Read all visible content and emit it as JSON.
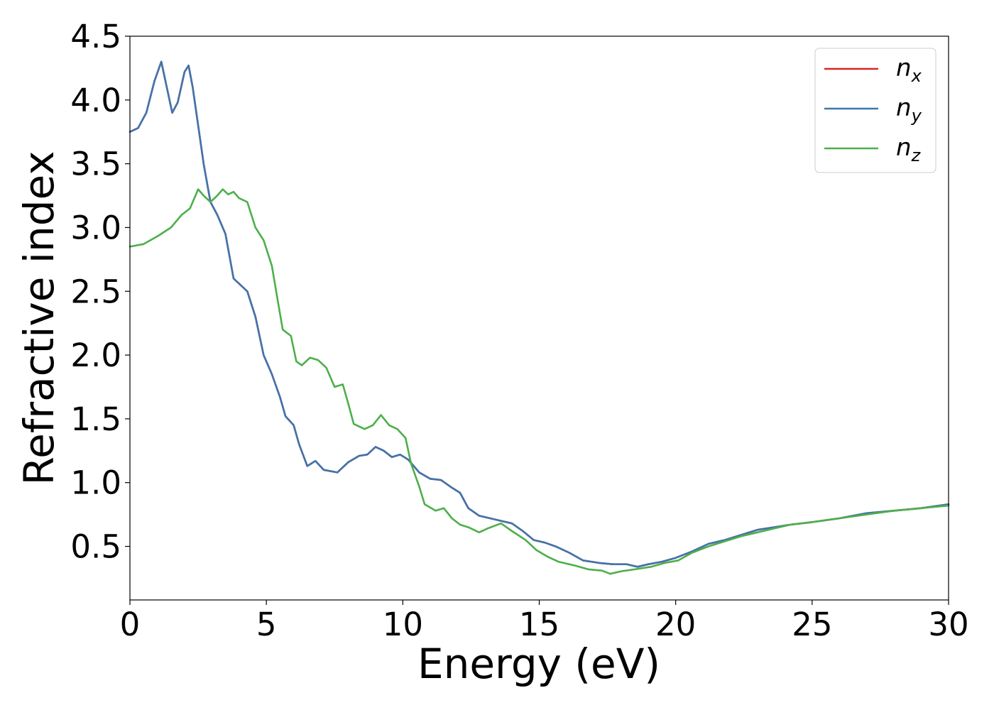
{
  "chart_data": {
    "type": "line",
    "xlabel": "Energy (eV)",
    "ylabel": "Refractive index",
    "xlim": [
      0,
      30
    ],
    "ylim": [
      0.08,
      4.5
    ],
    "xticks": [
      "0",
      "5",
      "10",
      "15",
      "20",
      "25",
      "30"
    ],
    "yticks": [
      "0.5",
      "1.0",
      "1.5",
      "2.0",
      "2.5",
      "3.0",
      "3.5",
      "4.0",
      "4.5"
    ],
    "grid": false,
    "legend_position": "top-right",
    "series": [
      {
        "name": "n_x",
        "label_main": "n",
        "label_sub": "x",
        "color": "#d62728",
        "points": [
          [
            0,
            3.75
          ],
          [
            0.3,
            3.78
          ],
          [
            0.6,
            3.9
          ],
          [
            0.9,
            4.15
          ],
          [
            1.15,
            4.3
          ],
          [
            1.35,
            4.1
          ],
          [
            1.55,
            3.9
          ],
          [
            1.75,
            3.98
          ],
          [
            2.0,
            4.22
          ],
          [
            2.15,
            4.27
          ],
          [
            2.3,
            4.1
          ],
          [
            2.5,
            3.8
          ],
          [
            2.7,
            3.5
          ],
          [
            2.95,
            3.2
          ],
          [
            3.2,
            3.1
          ],
          [
            3.5,
            2.95
          ],
          [
            3.8,
            2.6
          ],
          [
            4.05,
            2.55
          ],
          [
            4.3,
            2.5
          ],
          [
            4.6,
            2.3
          ],
          [
            4.9,
            2.0
          ],
          [
            5.2,
            1.85
          ],
          [
            5.5,
            1.67
          ],
          [
            5.7,
            1.52
          ],
          [
            6.0,
            1.45
          ],
          [
            6.2,
            1.3
          ],
          [
            6.5,
            1.13
          ],
          [
            6.8,
            1.17
          ],
          [
            7.1,
            1.1
          ],
          [
            7.6,
            1.08
          ],
          [
            8.0,
            1.16
          ],
          [
            8.4,
            1.21
          ],
          [
            8.7,
            1.22
          ],
          [
            9.0,
            1.28
          ],
          [
            9.3,
            1.25
          ],
          [
            9.6,
            1.2
          ],
          [
            9.9,
            1.22
          ],
          [
            10.2,
            1.18
          ],
          [
            10.6,
            1.08
          ],
          [
            11.0,
            1.03
          ],
          [
            11.4,
            1.02
          ],
          [
            11.8,
            0.96
          ],
          [
            12.1,
            0.92
          ],
          [
            12.4,
            0.8
          ],
          [
            12.8,
            0.74
          ],
          [
            13.2,
            0.72
          ],
          [
            13.6,
            0.7
          ],
          [
            14.0,
            0.68
          ],
          [
            14.4,
            0.62
          ],
          [
            14.8,
            0.55
          ],
          [
            15.2,
            0.53
          ],
          [
            15.6,
            0.5
          ],
          [
            16.1,
            0.45
          ],
          [
            16.6,
            0.39
          ],
          [
            17.2,
            0.37
          ],
          [
            17.7,
            0.36
          ],
          [
            18.2,
            0.36
          ],
          [
            18.6,
            0.34
          ],
          [
            19.0,
            0.36
          ],
          [
            19.5,
            0.38
          ],
          [
            20.0,
            0.41
          ],
          [
            20.6,
            0.46
          ],
          [
            21.2,
            0.52
          ],
          [
            21.8,
            0.55
          ],
          [
            22.4,
            0.59
          ],
          [
            23.0,
            0.63
          ],
          [
            23.6,
            0.65
          ],
          [
            24.2,
            0.67
          ],
          [
            25.0,
            0.69
          ],
          [
            26.0,
            0.72
          ],
          [
            27.0,
            0.76
          ],
          [
            28.0,
            0.78
          ],
          [
            29.0,
            0.8
          ],
          [
            30.0,
            0.83
          ]
        ]
      },
      {
        "name": "n_y",
        "label_main": "n",
        "label_sub": "y",
        "color": "#3f75ad",
        "points": [
          [
            0,
            3.75
          ],
          [
            0.3,
            3.78
          ],
          [
            0.6,
            3.9
          ],
          [
            0.9,
            4.15
          ],
          [
            1.15,
            4.3
          ],
          [
            1.35,
            4.1
          ],
          [
            1.55,
            3.9
          ],
          [
            1.75,
            3.98
          ],
          [
            2.0,
            4.22
          ],
          [
            2.15,
            4.27
          ],
          [
            2.3,
            4.1
          ],
          [
            2.5,
            3.8
          ],
          [
            2.7,
            3.5
          ],
          [
            2.95,
            3.2
          ],
          [
            3.2,
            3.1
          ],
          [
            3.5,
            2.95
          ],
          [
            3.8,
            2.6
          ],
          [
            4.05,
            2.55
          ],
          [
            4.3,
            2.5
          ],
          [
            4.6,
            2.3
          ],
          [
            4.9,
            2.0
          ],
          [
            5.2,
            1.85
          ],
          [
            5.5,
            1.67
          ],
          [
            5.7,
            1.52
          ],
          [
            6.0,
            1.45
          ],
          [
            6.2,
            1.3
          ],
          [
            6.5,
            1.13
          ],
          [
            6.8,
            1.17
          ],
          [
            7.1,
            1.1
          ],
          [
            7.6,
            1.08
          ],
          [
            8.0,
            1.16
          ],
          [
            8.4,
            1.21
          ],
          [
            8.7,
            1.22
          ],
          [
            9.0,
            1.28
          ],
          [
            9.3,
            1.25
          ],
          [
            9.6,
            1.2
          ],
          [
            9.9,
            1.22
          ],
          [
            10.2,
            1.18
          ],
          [
            10.6,
            1.08
          ],
          [
            11.0,
            1.03
          ],
          [
            11.4,
            1.02
          ],
          [
            11.8,
            0.96
          ],
          [
            12.1,
            0.92
          ],
          [
            12.4,
            0.8
          ],
          [
            12.8,
            0.74
          ],
          [
            13.2,
            0.72
          ],
          [
            13.6,
            0.7
          ],
          [
            14.0,
            0.68
          ],
          [
            14.4,
            0.62
          ],
          [
            14.8,
            0.55
          ],
          [
            15.2,
            0.53
          ],
          [
            15.6,
            0.5
          ],
          [
            16.1,
            0.45
          ],
          [
            16.6,
            0.39
          ],
          [
            17.2,
            0.37
          ],
          [
            17.7,
            0.36
          ],
          [
            18.2,
            0.36
          ],
          [
            18.6,
            0.34
          ],
          [
            19.0,
            0.36
          ],
          [
            19.5,
            0.38
          ],
          [
            20.0,
            0.41
          ],
          [
            20.6,
            0.46
          ],
          [
            21.2,
            0.52
          ],
          [
            21.8,
            0.55
          ],
          [
            22.4,
            0.59
          ],
          [
            23.0,
            0.63
          ],
          [
            23.6,
            0.65
          ],
          [
            24.2,
            0.67
          ],
          [
            25.0,
            0.69
          ],
          [
            26.0,
            0.72
          ],
          [
            27.0,
            0.76
          ],
          [
            28.0,
            0.78
          ],
          [
            29.0,
            0.8
          ],
          [
            30.0,
            0.83
          ]
        ]
      },
      {
        "name": "n_z",
        "label_main": "n",
        "label_sub": "z",
        "color": "#4daf4a",
        "points": [
          [
            0,
            2.85
          ],
          [
            0.5,
            2.87
          ],
          [
            1.0,
            2.93
          ],
          [
            1.5,
            3.0
          ],
          [
            1.9,
            3.1
          ],
          [
            2.2,
            3.15
          ],
          [
            2.5,
            3.3
          ],
          [
            2.7,
            3.25
          ],
          [
            2.95,
            3.2
          ],
          [
            3.2,
            3.25
          ],
          [
            3.4,
            3.3
          ],
          [
            3.6,
            3.26
          ],
          [
            3.8,
            3.28
          ],
          [
            4.0,
            3.23
          ],
          [
            4.3,
            3.2
          ],
          [
            4.6,
            3.0
          ],
          [
            4.9,
            2.9
          ],
          [
            5.2,
            2.7
          ],
          [
            5.4,
            2.45
          ],
          [
            5.6,
            2.2
          ],
          [
            5.9,
            2.15
          ],
          [
            6.1,
            1.95
          ],
          [
            6.3,
            1.92
          ],
          [
            6.6,
            1.98
          ],
          [
            6.9,
            1.96
          ],
          [
            7.2,
            1.9
          ],
          [
            7.5,
            1.75
          ],
          [
            7.8,
            1.77
          ],
          [
            8.0,
            1.62
          ],
          [
            8.2,
            1.46
          ],
          [
            8.6,
            1.42
          ],
          [
            8.9,
            1.45
          ],
          [
            9.2,
            1.53
          ],
          [
            9.5,
            1.45
          ],
          [
            9.8,
            1.42
          ],
          [
            10.1,
            1.35
          ],
          [
            10.3,
            1.15
          ],
          [
            10.6,
            0.97
          ],
          [
            10.8,
            0.83
          ],
          [
            11.2,
            0.78
          ],
          [
            11.5,
            0.8
          ],
          [
            11.8,
            0.72
          ],
          [
            12.1,
            0.67
          ],
          [
            12.4,
            0.65
          ],
          [
            12.8,
            0.61
          ],
          [
            13.1,
            0.64
          ],
          [
            13.6,
            0.68
          ],
          [
            14.0,
            0.62
          ],
          [
            14.5,
            0.55
          ],
          [
            14.9,
            0.47
          ],
          [
            15.3,
            0.42
          ],
          [
            15.7,
            0.38
          ],
          [
            16.3,
            0.35
          ],
          [
            16.8,
            0.32
          ],
          [
            17.3,
            0.31
          ],
          [
            17.6,
            0.285
          ],
          [
            18.0,
            0.305
          ],
          [
            18.5,
            0.32
          ],
          [
            19.1,
            0.34
          ],
          [
            19.6,
            0.37
          ],
          [
            20.1,
            0.39
          ],
          [
            20.6,
            0.45
          ],
          [
            21.2,
            0.5
          ],
          [
            21.8,
            0.54
          ],
          [
            22.4,
            0.58
          ],
          [
            23.0,
            0.61
          ],
          [
            23.6,
            0.64
          ],
          [
            24.2,
            0.67
          ],
          [
            25.0,
            0.69
          ],
          [
            26.0,
            0.72
          ],
          [
            27.0,
            0.75
          ],
          [
            28.0,
            0.78
          ],
          [
            29.0,
            0.8
          ],
          [
            30.0,
            0.82
          ]
        ]
      }
    ]
  }
}
